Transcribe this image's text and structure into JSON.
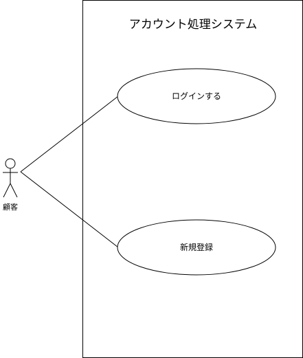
{
  "system": {
    "title": "アカウント処理システム"
  },
  "actor": {
    "label": "顧客"
  },
  "use_cases": [
    {
      "label": "ログインする"
    },
    {
      "label": "新規登録"
    }
  ],
  "colors": {
    "stroke": "#000000",
    "background": "#ffffff"
  }
}
